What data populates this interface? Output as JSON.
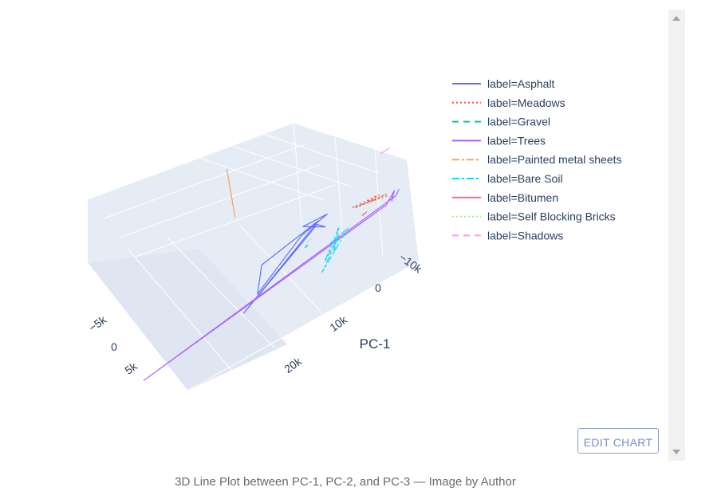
{
  "chart_data": {
    "type": "line3d",
    "title": "",
    "axes": {
      "x": {
        "title": "PC-1",
        "ticks": [
          "20k",
          "10k",
          "0",
          "−10k"
        ]
      },
      "y": {
        "title": "",
        "ticks": [
          "−5k",
          "0",
          "5k"
        ]
      },
      "z": {
        "title": "",
        "ticks": []
      }
    },
    "series": [
      {
        "name": "label=Asphalt",
        "color": "#636efa",
        "dash": "solid",
        "points": [
          [
            -4000,
            -1500,
            0
          ],
          [
            -3500,
            -1200,
            500
          ],
          [
            -4500,
            -800,
            -300
          ],
          [
            -3000,
            -2000,
            200
          ],
          [
            -5000,
            -1000,
            800
          ],
          [
            -2500,
            -1800,
            -500
          ],
          [
            5000,
            -600,
            -2500
          ],
          [
            2000,
            -2500,
            -1500
          ],
          [
            -4200,
            -1300,
            400
          ],
          [
            7000,
            -500,
            -3500
          ],
          [
            -3800,
            -1100,
            300
          ]
        ]
      },
      {
        "name": "label=Meadows",
        "color": "#ef553b",
        "dash": "dot",
        "points": [
          [
            -9000,
            -500,
            -200
          ],
          [
            -10000,
            300,
            100
          ],
          [
            -8500,
            -800,
            -400
          ],
          [
            -11000,
            600,
            200
          ],
          [
            -9500,
            -300,
            -100
          ],
          [
            -10500,
            200,
            300
          ],
          [
            -8000,
            -600,
            0
          ],
          [
            -11500,
            400,
            -300
          ]
        ]
      },
      {
        "name": "label=Gravel",
        "color": "#00cc96",
        "dash": "dash",
        "points": [
          [
            -2000,
            -800,
            -1000
          ],
          [
            -1500,
            -600,
            -900
          ],
          [
            -2200,
            -900,
            -1100
          ],
          [
            -1800,
            -700,
            -950
          ]
        ]
      },
      {
        "name": "label=Trees",
        "color": "#ab63fa",
        "dash": "solid",
        "points": [
          [
            -12000,
            500,
            -500
          ],
          [
            -11500,
            800,
            -800
          ],
          [
            -12500,
            300,
            -300
          ],
          [
            -11000,
            600,
            -1000
          ],
          [
            20000,
            -1000,
            -4000
          ],
          [
            -12200,
            700,
            -600
          ],
          [
            -13000,
            400,
            -400
          ]
        ]
      },
      {
        "name": "label=Painted metal sheets",
        "color": "#ffa15a",
        "dash": "dashdot",
        "points": [
          [
            -2000,
            -9000,
            3000
          ],
          [
            -1000,
            -8000,
            2500
          ],
          [
            -3000,
            -10000,
            3500
          ],
          [
            0,
            -7000,
            2000
          ],
          [
            -2500,
            -9500,
            3200
          ],
          [
            -1500,
            -8500,
            2700
          ],
          [
            -3500,
            -10500,
            3800
          ],
          [
            500,
            -6500,
            1800
          ],
          [
            -2200,
            -9200,
            3100
          ]
        ]
      },
      {
        "name": "label=Bare Soil",
        "color": "#19d3f3",
        "dash": "dashdot",
        "points": [
          [
            -5000,
            0,
            -1500
          ],
          [
            -4000,
            500,
            -2500
          ],
          [
            -6000,
            -500,
            -1000
          ],
          [
            -3000,
            300,
            -3000
          ],
          [
            -5500,
            -200,
            -1800
          ],
          [
            -2000,
            800,
            -3500
          ],
          [
            -6500,
            100,
            -1200
          ],
          [
            -4500,
            -300,
            -2000
          ]
        ]
      },
      {
        "name": "label=Bitumen",
        "color": "#ff6692",
        "dash": "solid",
        "points": [
          [
            -8500,
            200,
            -700
          ],
          [
            -8000,
            400,
            -600
          ],
          [
            -9000,
            100,
            -800
          ]
        ]
      },
      {
        "name": "label=Self Blocking Bricks",
        "color": "#b6e880",
        "dash": "dot",
        "points": [
          [
            -2500,
            -1000,
            -800
          ],
          [
            -2000,
            -900,
            -700
          ],
          [
            -3000,
            -1100,
            -900
          ]
        ]
      },
      {
        "name": "label=Shadows",
        "color": "#ff97ff",
        "dash": "dash",
        "points": [
          [
            -14000,
            -2000,
            2500
          ],
          [
            -14500,
            -1800,
            2700
          ],
          [
            -13500,
            -2200,
            2300
          ]
        ]
      }
    ],
    "legend": {
      "position": "top-right"
    }
  },
  "edit_button": {
    "label": "EDIT CHART"
  },
  "caption": "3D Line Plot between PC-1, PC-2, and PC-3 — Image by Author"
}
